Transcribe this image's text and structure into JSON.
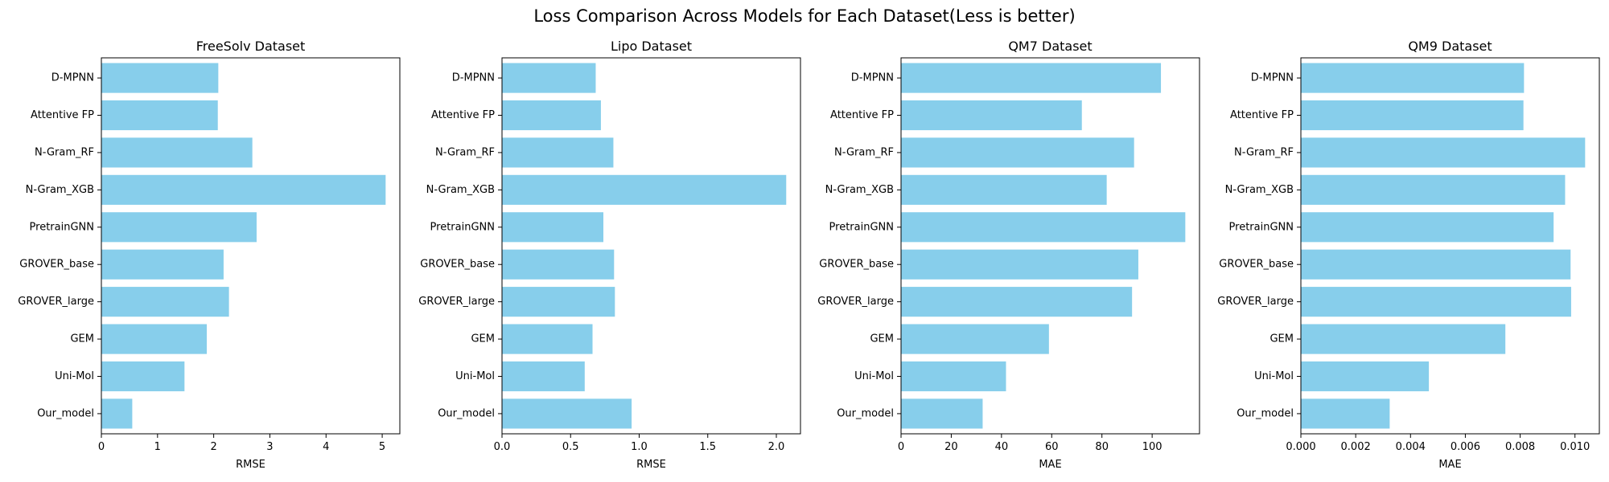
{
  "suptitle": "Loss Comparison Across Models for Each Dataset(Less is better)",
  "colors": {
    "bar": "#87CEEB",
    "axis": "#000000",
    "background": "#ffffff"
  },
  "chart_data": [
    {
      "type": "bar",
      "orientation": "horizontal",
      "title": "FreeSolv Dataset",
      "xlabel": "RMSE",
      "ylabel": "",
      "categories": [
        "D-MPNN",
        "Attentive FP",
        "N-Gram_RF",
        "N-Gram_XGB",
        "PretrainGNN",
        "GROVER_base",
        "GROVER_large",
        "GEM",
        "Uni-Mol",
        "Our_model"
      ],
      "values": [
        2.082,
        2.073,
        2.688,
        5.061,
        2.764,
        2.176,
        2.272,
        1.877,
        1.48,
        0.55
      ],
      "xlim": [
        0,
        5.314
      ],
      "xticks": [
        0,
        1,
        2,
        3,
        4,
        5
      ],
      "xtick_labels": [
        "0",
        "1",
        "2",
        "3",
        "4",
        "5"
      ]
    },
    {
      "type": "bar",
      "orientation": "horizontal",
      "title": "Lipo Dataset",
      "xlabel": "RMSE",
      "ylabel": "",
      "categories": [
        "D-MPNN",
        "Attentive FP",
        "N-Gram_RF",
        "N-Gram_XGB",
        "PretrainGNN",
        "GROVER_base",
        "GROVER_large",
        "GEM",
        "Uni-Mol",
        "Our_model"
      ],
      "values": [
        0.683,
        0.721,
        0.812,
        2.072,
        0.739,
        0.817,
        0.823,
        0.66,
        0.603,
        0.945
      ],
      "xlim": [
        0,
        2.176
      ],
      "xticks": [
        0,
        0.5,
        1.0,
        1.5,
        2.0
      ],
      "xtick_labels": [
        "0.0",
        "0.5",
        "1.0",
        "1.5",
        "2.0"
      ]
    },
    {
      "type": "bar",
      "orientation": "horizontal",
      "title": "QM7 Dataset",
      "xlabel": "MAE",
      "ylabel": "",
      "categories": [
        "D-MPNN",
        "Attentive FP",
        "N-Gram_RF",
        "N-Gram_XGB",
        "PretrainGNN",
        "GROVER_base",
        "GROVER_large",
        "GEM",
        "Uni-Mol",
        "Our_model"
      ],
      "values": [
        103.5,
        72.0,
        92.8,
        81.9,
        113.2,
        94.5,
        92.0,
        58.9,
        41.8,
        32.5
      ],
      "xlim": [
        0,
        118.86
      ],
      "xticks": [
        0,
        20,
        40,
        60,
        80,
        100
      ],
      "xtick_labels": [
        "0",
        "20",
        "40",
        "60",
        "80",
        "100"
      ]
    },
    {
      "type": "bar",
      "orientation": "horizontal",
      "title": "QM9 Dataset",
      "xlabel": "MAE",
      "ylabel": "",
      "categories": [
        "D-MPNN",
        "Attentive FP",
        "N-Gram_RF",
        "N-Gram_XGB",
        "PretrainGNN",
        "GROVER_base",
        "GROVER_large",
        "GEM",
        "Uni-Mol",
        "Our_model"
      ],
      "values": [
        0.00814,
        0.00812,
        0.01037,
        0.00964,
        0.00922,
        0.00984,
        0.00986,
        0.00746,
        0.00467,
        0.00324
      ],
      "xlim": [
        0,
        0.010889
      ],
      "xticks": [
        0,
        0.002,
        0.004,
        0.006,
        0.008,
        0.01
      ],
      "xtick_labels": [
        "0.000",
        "0.002",
        "0.004",
        "0.006",
        "0.008",
        "0.010"
      ]
    }
  ]
}
